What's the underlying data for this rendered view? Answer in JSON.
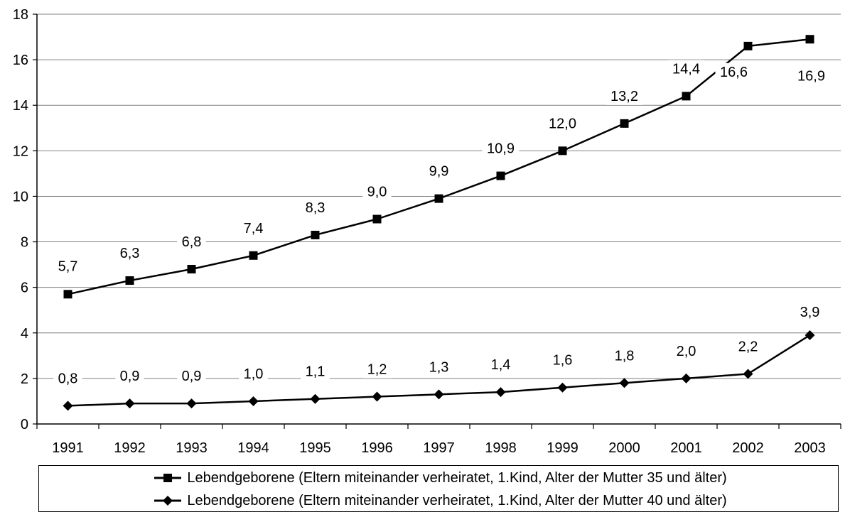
{
  "chart_data": {
    "type": "line",
    "categories": [
      "1991",
      "1992",
      "1993",
      "1994",
      "1995",
      "1996",
      "1997",
      "1998",
      "1999",
      "2000",
      "2001",
      "2002",
      "2003"
    ],
    "ylim": [
      0,
      18
    ],
    "yticks": [
      0,
      2,
      4,
      6,
      8,
      10,
      12,
      14,
      16,
      18
    ],
    "grid": true,
    "legend_position": "bottom",
    "series": [
      {
        "name": "Lebendgeborene (Eltern miteinander verheiratet, 1.Kind, Alter der Mutter 35 und älter)",
        "marker": "square",
        "values": [
          5.7,
          6.3,
          6.8,
          7.4,
          8.3,
          9.0,
          9.9,
          10.9,
          12.0,
          13.2,
          14.4,
          16.6,
          16.9
        ],
        "labels": [
          "5,7",
          "6,3",
          "6,8",
          "7,4",
          "8,3",
          "9,0",
          "9,9",
          "10,9",
          "12,0",
          "13,2",
          "14,4",
          "16,6",
          "16,9"
        ]
      },
      {
        "name": "Lebendgeborene (Eltern miteinander verheiratet, 1.Kind, Alter der Mutter 40 und älter)",
        "marker": "diamond",
        "values": [
          0.8,
          0.9,
          0.9,
          1.0,
          1.1,
          1.2,
          1.3,
          1.4,
          1.6,
          1.8,
          2.0,
          2.2,
          3.9
        ],
        "labels": [
          "0,8",
          "0,9",
          "0,9",
          "1,0",
          "1,1",
          "1,2",
          "1,3",
          "1,4",
          "1,6",
          "1,8",
          "2,0",
          "2,2",
          "3,9"
        ]
      }
    ],
    "colors": {
      "line": "#000000",
      "grid": "#808080",
      "background": "#ffffff"
    }
  }
}
